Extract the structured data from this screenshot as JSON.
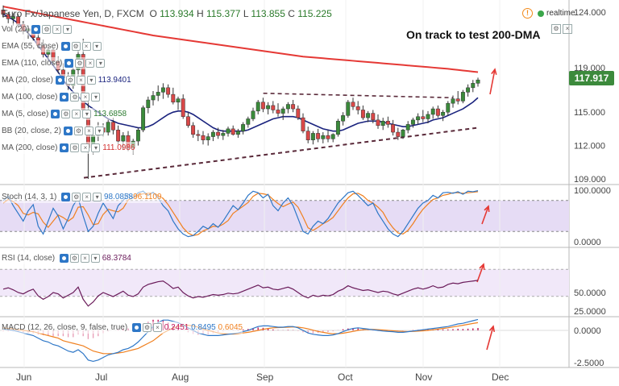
{
  "header": {
    "symbol": "Euro Fx/Japanese Yen, D, FXCM",
    "o_label": "O",
    "o_val": "113.934",
    "h_label": "H",
    "h_val": "115.377",
    "l_label": "L",
    "l_val": "113.855",
    "c_label": "C",
    "c_val": "115.225"
  },
  "realtime_label": "realtime",
  "annotation": "On track to test 200-DMA",
  "last_price": "117.917",
  "indicators": [
    {
      "label": "Vol (20)"
    },
    {
      "label": "EMA (55, close)"
    },
    {
      "label": "EMA (110, close)"
    },
    {
      "label": "MA (20, close)",
      "value": "113.9401",
      "color": "#1a237e"
    },
    {
      "label": "MA (100, close)"
    },
    {
      "label": "MA (5, close)",
      "value": "113.6858",
      "color": "#2e7d32"
    },
    {
      "label": "BB (20, close, 2)"
    },
    {
      "label": "MA (200, close)",
      "value": "111.0986",
      "color": "#d32f2f"
    }
  ],
  "sub_panels": {
    "stoch": {
      "label": "Stoch (14, 3, 1)",
      "k_val": "98.0858",
      "d_val": "96.1109",
      "k_color": "#2e77c7",
      "d_color": "#f0801f"
    },
    "rsi": {
      "label": "RSI (14, close)",
      "value": "68.3784"
    },
    "macd": {
      "label": "MACD (12, 26, close, 9, false, true)",
      "hist_val": "0.2451",
      "macd_val": "0.8495",
      "signal_val": "0.6045"
    }
  },
  "chart_data": {
    "type": "candlestick",
    "price_axis": [
      124.0,
      119.0,
      115.0,
      112.0,
      109.0
    ],
    "stoch_axis": [
      "100.0000",
      "0.0000"
    ],
    "rsi_axis": [
      "50.0000",
      "25.0000"
    ],
    "macd_axis": [
      "0.0000",
      "-2.5000"
    ],
    "months": [
      "Jun",
      "Jul",
      "Aug",
      "Sep",
      "Oct",
      "Nov",
      "Dec"
    ],
    "candles": [
      [
        124.2,
        124.6,
        123.5,
        123.8
      ],
      [
        123.8,
        124.0,
        123.0,
        123.4
      ],
      [
        123.4,
        123.9,
        122.8,
        123.6
      ],
      [
        123.6,
        123.8,
        122.6,
        122.9
      ],
      [
        122.9,
        123.2,
        122.0,
        122.3
      ],
      [
        122.3,
        122.8,
        121.6,
        122.5
      ],
      [
        122.5,
        122.7,
        121.4,
        121.7
      ],
      [
        121.7,
        122.1,
        120.8,
        121.0
      ],
      [
        121.0,
        121.5,
        119.9,
        120.2
      ],
      [
        120.2,
        120.9,
        119.6,
        120.6
      ],
      [
        120.6,
        120.8,
        119.3,
        119.6
      ],
      [
        119.6,
        120.0,
        118.5,
        118.8
      ],
      [
        118.8,
        119.4,
        117.8,
        118.1
      ],
      [
        118.1,
        118.6,
        117.0,
        117.4
      ],
      [
        117.4,
        119.0,
        117.1,
        118.8
      ],
      [
        118.8,
        120.9,
        118.2,
        120.2
      ],
      [
        120.2,
        121.6,
        114.5,
        115.2
      ],
      [
        115.2,
        116.0,
        109.0,
        111.8
      ],
      [
        111.8,
        113.4,
        111.2,
        112.9
      ],
      [
        112.9,
        114.1,
        112.4,
        113.6
      ],
      [
        113.6,
        114.0,
        112.8,
        113.2
      ],
      [
        113.2,
        114.4,
        112.9,
        114.1
      ],
      [
        114.1,
        114.5,
        113.0,
        113.4
      ],
      [
        113.4,
        113.8,
        112.1,
        112.4
      ],
      [
        112.4,
        113.2,
        111.6,
        112.9
      ],
      [
        112.9,
        113.3,
        111.5,
        111.8
      ],
      [
        111.8,
        112.6,
        111.2,
        112.4
      ],
      [
        112.4,
        113.6,
        112.0,
        113.4
      ],
      [
        113.4,
        115.6,
        113.2,
        115.4
      ],
      [
        115.4,
        116.4,
        114.9,
        116.1
      ],
      [
        116.1,
        116.9,
        115.6,
        116.5
      ],
      [
        116.5,
        117.4,
        116.0,
        116.8
      ],
      [
        116.8,
        117.6,
        116.2,
        117.2
      ],
      [
        117.2,
        117.5,
        116.3,
        116.6
      ],
      [
        116.6,
        117.2,
        115.7,
        115.9
      ],
      [
        115.9,
        116.4,
        115.2,
        116.2
      ],
      [
        116.2,
        116.6,
        114.4,
        114.6
      ],
      [
        114.6,
        115.0,
        113.6,
        113.8
      ],
      [
        113.8,
        114.1,
        112.7,
        113.0
      ],
      [
        113.0,
        113.4,
        112.4,
        112.9
      ],
      [
        112.9,
        113.3,
        112.1,
        112.5
      ],
      [
        112.5,
        113.1,
        112.0,
        112.8
      ],
      [
        112.8,
        113.4,
        112.4,
        113.2
      ],
      [
        113.2,
        113.6,
        112.6,
        112.9
      ],
      [
        112.9,
        113.4,
        112.5,
        113.1
      ],
      [
        113.1,
        113.7,
        112.8,
        113.5
      ],
      [
        113.5,
        113.8,
        112.9,
        113.0
      ],
      [
        113.0,
        113.5,
        112.7,
        113.3
      ],
      [
        113.3,
        114.1,
        113.0,
        113.9
      ],
      [
        113.9,
        114.6,
        113.6,
        114.4
      ],
      [
        114.4,
        115.4,
        114.2,
        115.1
      ],
      [
        115.1,
        116.1,
        114.8,
        115.9
      ],
      [
        115.9,
        116.3,
        115.0,
        115.3
      ],
      [
        115.3,
        115.9,
        114.8,
        115.6
      ],
      [
        115.6,
        116.0,
        114.9,
        115.2
      ],
      [
        115.2,
        115.8,
        114.6,
        114.9
      ],
      [
        114.9,
        115.5,
        114.3,
        115.3
      ],
      [
        115.3,
        115.9,
        114.9,
        115.7
      ],
      [
        115.7,
        116.1,
        115.0,
        115.3
      ],
      [
        115.3,
        115.6,
        114.3,
        114.5
      ],
      [
        114.5,
        114.9,
        113.1,
        113.3
      ],
      [
        113.3,
        113.7,
        112.2,
        112.5
      ],
      [
        112.5,
        113.3,
        112.1,
        113.1
      ],
      [
        113.1,
        113.5,
        112.3,
        112.6
      ],
      [
        112.6,
        113.2,
        112.2,
        112.9
      ],
      [
        112.9,
        113.4,
        112.3,
        112.6
      ],
      [
        112.6,
        113.1,
        112.3,
        113.0
      ],
      [
        113.0,
        114.4,
        112.8,
        114.2
      ],
      [
        114.2,
        115.0,
        113.8,
        114.7
      ],
      [
        114.7,
        116.1,
        114.5,
        115.9
      ],
      [
        115.9,
        116.3,
        115.2,
        115.5
      ],
      [
        115.5,
        116.0,
        114.8,
        115.2
      ],
      [
        115.2,
        115.6,
        114.3,
        114.5
      ],
      [
        114.5,
        115.1,
        114.1,
        114.9
      ],
      [
        114.9,
        115.2,
        114.0,
        114.3
      ],
      [
        114.3,
        114.8,
        113.5,
        113.8
      ],
      [
        113.8,
        114.5,
        113.4,
        114.2
      ],
      [
        114.2,
        114.6,
        113.6,
        113.9
      ],
      [
        113.9,
        114.3,
        112.9,
        113.2
      ],
      [
        113.2,
        113.6,
        112.5,
        112.8
      ],
      [
        112.8,
        113.5,
        112.6,
        113.4
      ],
      [
        113.4,
        114.2,
        113.1,
        113.9
      ],
      [
        113.9,
        114.5,
        113.6,
        114.3
      ],
      [
        114.3,
        114.9,
        113.9,
        114.6
      ],
      [
        114.6,
        115.2,
        114.1,
        114.4
      ],
      [
        114.4,
        115.1,
        114.0,
        114.8
      ],
      [
        114.8,
        115.5,
        114.4,
        115.3
      ],
      [
        115.3,
        115.6,
        114.5,
        114.7
      ],
      [
        114.7,
        115.2,
        114.2,
        115.0
      ],
      [
        115.0,
        116.0,
        114.7,
        115.8
      ],
      [
        115.8,
        116.5,
        115.4,
        116.2
      ],
      [
        116.2,
        116.9,
        115.7,
        116.0
      ],
      [
        116.0,
        117.0,
        115.8,
        116.8
      ],
      [
        116.8,
        117.5,
        116.4,
        117.2
      ],
      [
        117.2,
        117.9,
        116.8,
        117.6
      ],
      [
        117.6,
        118.1,
        117.3,
        117.9
      ]
    ],
    "ma20": [
      123.8,
      123.6,
      123.3,
      123.0,
      122.6,
      122.1,
      121.6,
      121.0,
      120.4,
      119.8,
      119.2,
      118.6,
      117.9,
      117.3,
      116.8,
      116.4,
      116.0,
      115.6,
      115.3,
      115.0,
      114.7,
      114.4,
      114.2,
      114.0,
      113.9,
      113.8,
      113.7,
      113.6,
      113.6,
      113.7,
      113.9,
      114.2,
      114.5,
      114.8,
      115.0,
      115.1,
      115.1,
      115.0,
      114.8,
      114.5,
      114.2,
      113.9,
      113.6,
      113.4,
      113.3,
      113.3,
      113.3,
      113.3,
      113.3,
      113.4,
      113.6,
      113.8,
      114.0,
      114.2,
      114.4,
      114.5,
      114.6,
      114.6,
      114.6,
      114.5,
      114.3,
      114.1,
      113.9,
      113.7,
      113.5,
      113.4,
      113.3,
      113.3,
      113.4,
      113.6,
      113.8,
      114.0,
      114.1,
      114.2,
      114.2,
      114.2,
      114.1,
      114.0,
      113.9,
      113.8,
      113.7,
      113.7,
      113.8,
      113.9,
      114.0,
      114.1,
      114.3,
      114.4,
      114.5,
      114.7,
      114.9,
      115.1,
      115.3,
      115.6,
      115.9,
      116.3
    ],
    "ma200": [
      [
        0,
        124.5
      ],
      [
        30,
        121.9
      ],
      [
        60,
        120.0
      ],
      [
        89,
        118.9
      ],
      [
        95,
        118.6
      ]
    ],
    "support_line": [
      [
        0,
        109.1
      ],
      [
        95,
        113.6
      ]
    ],
    "resistance_line": [
      [
        48,
        116.7
      ],
      [
        90,
        116.3
      ]
    ],
    "stoch_k": [
      80,
      88,
      70,
      55,
      40,
      60,
      72,
      30,
      15,
      40,
      65,
      50,
      25,
      45,
      70,
      85,
      50,
      20,
      30,
      55,
      75,
      60,
      45,
      70,
      80,
      92,
      85,
      95,
      98,
      90,
      96,
      85,
      70,
      60,
      40,
      25,
      15,
      10,
      12,
      20,
      30,
      25,
      35,
      28,
      40,
      55,
      70,
      62,
      75,
      90,
      98,
      95,
      85,
      92,
      70,
      60,
      75,
      85,
      70,
      45,
      20,
      15,
      30,
      40,
      35,
      45,
      60,
      75,
      85,
      95,
      98,
      90,
      80,
      70,
      75,
      55,
      40,
      25,
      15,
      10,
      20,
      35,
      50,
      65,
      75,
      80,
      90,
      85,
      95,
      96,
      94,
      97,
      92,
      98,
      97,
      99
    ],
    "stoch_d": [
      75,
      82,
      78,
      70,
      55,
      52,
      57,
      54,
      38,
      28,
      40,
      52,
      47,
      40,
      47,
      67,
      68,
      52,
      33,
      35,
      53,
      63,
      60,
      58,
      65,
      81,
      86,
      91,
      93,
      94,
      95,
      90,
      84,
      72,
      57,
      42,
      27,
      17,
      12,
      14,
      21,
      25,
      30,
      29,
      34,
      41,
      55,
      62,
      69,
      76,
      88,
      94,
      93,
      91,
      82,
      74,
      68,
      73,
      77,
      67,
      48,
      27,
      22,
      28,
      35,
      40,
      47,
      60,
      73,
      85,
      93,
      94,
      89,
      80,
      75,
      67,
      57,
      40,
      27,
      17,
      15,
      22,
      35,
      50,
      63,
      73,
      82,
      85,
      90,
      92,
      95,
      95,
      94,
      95,
      96,
      97
    ],
    "rsi": [
      55,
      57,
      54,
      50,
      48,
      52,
      55,
      45,
      40,
      44,
      50,
      48,
      42,
      46,
      50,
      58,
      40,
      30,
      36,
      45,
      50,
      47,
      44,
      48,
      52,
      46,
      44,
      48,
      58,
      62,
      64,
      66,
      67,
      62,
      56,
      58,
      50,
      45,
      42,
      44,
      43,
      45,
      47,
      46,
      47,
      49,
      48,
      49,
      52,
      55,
      58,
      61,
      57,
      58,
      55,
      54,
      56,
      58,
      55,
      50,
      45,
      42,
      46,
      44,
      46,
      45,
      47,
      52,
      55,
      60,
      57,
      55,
      53,
      54,
      52,
      50,
      52,
      51,
      48,
      46,
      49,
      52,
      55,
      57,
      55,
      57,
      60,
      57,
      58,
      62,
      64,
      63,
      65,
      66,
      67,
      68
    ],
    "macd_line": [
      0.1,
      0.05,
      0,
      -0.1,
      -0.2,
      -0.3,
      -0.4,
      -0.6,
      -0.8,
      -0.9,
      -1.1,
      -1.2,
      -1.4,
      -1.6,
      -1.7,
      -1.5,
      -1.8,
      -2.3,
      -2.4,
      -2.3,
      -2.1,
      -1.9,
      -1.8,
      -1.7,
      -1.5,
      -1.4,
      -1.2,
      -0.9,
      -0.5,
      -0.1,
      0.3,
      0.6,
      0.8,
      0.8,
      0.7,
      0.6,
      0.4,
      0.2,
      0,
      -0.2,
      -0.3,
      -0.4,
      -0.4,
      -0.4,
      -0.35,
      -0.3,
      -0.25,
      -0.2,
      -0.1,
      0,
      0.15,
      0.3,
      0.35,
      0.35,
      0.3,
      0.25,
      0.25,
      0.3,
      0.3,
      0.2,
      0,
      -0.2,
      -0.3,
      -0.35,
      -0.4,
      -0.4,
      -0.35,
      -0.25,
      -0.1,
      0.05,
      0.15,
      0.2,
      0.15,
      0.1,
      0.05,
      0,
      -0.05,
      -0.08,
      -0.1,
      -0.15,
      -0.15,
      -0.1,
      -0.05,
      0,
      0.05,
      0.1,
      0.15,
      0.2,
      0.25,
      0.3,
      0.4,
      0.5,
      0.55,
      0.65,
      0.75,
      0.85
    ],
    "macd_signal": [
      0.2,
      0.15,
      0.1,
      0.05,
      0,
      -0.05,
      -0.1,
      -0.2,
      -0.3,
      -0.4,
      -0.5,
      -0.6,
      -0.8,
      -0.9,
      -1.0,
      -1.1,
      -1.2,
      -1.4,
      -1.6,
      -1.7,
      -1.8,
      -1.8,
      -1.8,
      -1.75,
      -1.7,
      -1.6,
      -1.5,
      -1.4,
      -1.2,
      -1.0,
      -0.8,
      -0.5,
      -0.2,
      0,
      0.2,
      0.3,
      0.4,
      0.4,
      0.35,
      0.25,
      0.1,
      0,
      -0.1,
      -0.2,
      -0.25,
      -0.28,
      -0.28,
      -0.25,
      -0.2,
      -0.15,
      -0.08,
      0,
      0.08,
      0.15,
      0.2,
      0.22,
      0.23,
      0.25,
      0.27,
      0.25,
      0.2,
      0.12,
      0.02,
      -0.08,
      -0.15,
      -0.22,
      -0.26,
      -0.26,
      -0.22,
      -0.15,
      -0.08,
      0,
      0.05,
      0.08,
      0.08,
      0.06,
      0.03,
      0,
      -0.03,
      -0.06,
      -0.08,
      -0.09,
      -0.08,
      -0.06,
      -0.03,
      0,
      0.05,
      0.1,
      0.15,
      0.2,
      0.27,
      0.33,
      0.4,
      0.47,
      0.54,
      0.6
    ]
  },
  "colors": {
    "bull": "#3a8a3a",
    "bear": "#d94848",
    "ma20": "#1a237e",
    "ma200": "#e53935",
    "dashed": "#5a2a3a",
    "stoch_band": "#e6dcf5",
    "rsi_band": "#f1e8f9",
    "rsi_line": "#6a1b5a",
    "macd_line": "#2e77c7",
    "signal_line": "#f0801f",
    "hist_pos": "#c2185b",
    "arrow": "#e53935"
  }
}
